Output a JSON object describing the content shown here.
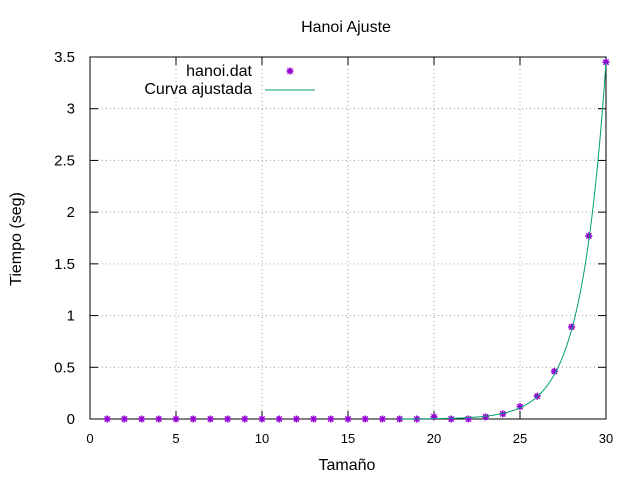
{
  "chart_data": {
    "type": "scatter",
    "title": "Hanoi Ajuste",
    "xlabel": "Tamaño",
    "ylabel": "Tiempo (seg)",
    "xlim": [
      0,
      30
    ],
    "ylim": [
      0,
      3.5
    ],
    "xticks": [
      "0",
      "5",
      "10",
      "15",
      "20",
      "25",
      "30"
    ],
    "yticks": [
      "0",
      "0.5",
      "1",
      "1.5",
      "2",
      "2.5",
      "3",
      "3.5"
    ],
    "grid": true,
    "legend_position": "top-left",
    "series": [
      {
        "name": "hanoi.dat",
        "kind": "points",
        "color": "#9400d3",
        "x": [
          1,
          2,
          3,
          4,
          5,
          6,
          7,
          8,
          9,
          10,
          11,
          12,
          13,
          14,
          15,
          16,
          17,
          18,
          19,
          20,
          21,
          22,
          23,
          24,
          25,
          26,
          27,
          28,
          29,
          30
        ],
        "y": [
          0,
          0,
          0,
          0,
          0,
          0,
          0,
          0,
          0,
          0,
          0,
          0,
          0,
          0,
          0,
          0,
          0,
          0,
          0,
          0.02,
          0,
          0,
          0.02,
          0.05,
          0.12,
          0.22,
          0.46,
          0.89,
          1.77,
          3.45
        ]
      },
      {
        "name": "Curva ajustada",
        "kind": "line",
        "color": "#009e73",
        "x": [
          18,
          19,
          20,
          21,
          22,
          23,
          24,
          25,
          26,
          27,
          28,
          29,
          30
        ],
        "y": [
          0.0008,
          0.0017,
          0.0034,
          0.0067,
          0.0135,
          0.027,
          0.054,
          0.108,
          0.216,
          0.431,
          0.863,
          1.725,
          3.45
        ]
      }
    ]
  }
}
